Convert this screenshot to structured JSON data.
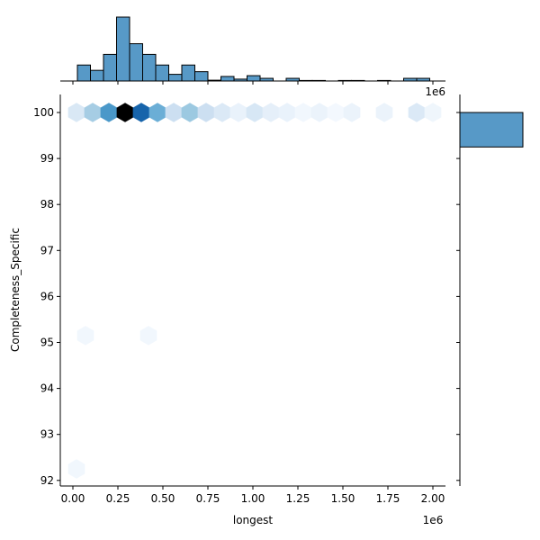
{
  "chart_data": {
    "type": "hexbin-jointplot",
    "title": "",
    "xlabel": "longest",
    "ylabel": "Completeness_Specific",
    "x_offset_label": "1e6",
    "top_offset_label": "1e6",
    "xlim": [
      -0.07,
      2.07
    ],
    "ylim": [
      91.9,
      100.4
    ],
    "x_ticks": [
      "0.00",
      "0.25",
      "0.50",
      "0.75",
      "1.00",
      "1.25",
      "1.50",
      "1.75",
      "2.00"
    ],
    "x_tick_values": [
      0.0,
      0.25,
      0.5,
      0.75,
      1.0,
      1.25,
      1.5,
      1.75,
      2.0
    ],
    "y_ticks": [
      "92",
      "93",
      "94",
      "95",
      "96",
      "97",
      "98",
      "99",
      "100"
    ],
    "y_tick_values": [
      92,
      93,
      94,
      95,
      96,
      97,
      98,
      99,
      100
    ],
    "colormap": "Blues",
    "hexbins": [
      {
        "x": 0.02,
        "y": 100,
        "intensity": 0.15
      },
      {
        "x": 0.11,
        "y": 100,
        "intensity": 0.35
      },
      {
        "x": 0.2,
        "y": 100,
        "intensity": 0.6
      },
      {
        "x": 0.29,
        "y": 100,
        "intensity": 1.0
      },
      {
        "x": 0.38,
        "y": 100,
        "intensity": 0.8
      },
      {
        "x": 0.47,
        "y": 100,
        "intensity": 0.5
      },
      {
        "x": 0.56,
        "y": 100,
        "intensity": 0.22
      },
      {
        "x": 0.65,
        "y": 100,
        "intensity": 0.38
      },
      {
        "x": 0.74,
        "y": 100,
        "intensity": 0.22
      },
      {
        "x": 0.83,
        "y": 100,
        "intensity": 0.14
      },
      {
        "x": 0.92,
        "y": 100,
        "intensity": 0.07
      },
      {
        "x": 1.01,
        "y": 100,
        "intensity": 0.16
      },
      {
        "x": 1.1,
        "y": 100,
        "intensity": 0.09
      },
      {
        "x": 1.19,
        "y": 100,
        "intensity": 0.07
      },
      {
        "x": 1.28,
        "y": 100,
        "intensity": 0.03
      },
      {
        "x": 1.37,
        "y": 100,
        "intensity": 0.06
      },
      {
        "x": 1.46,
        "y": 100,
        "intensity": 0.02
      },
      {
        "x": 1.55,
        "y": 100,
        "intensity": 0.06
      },
      {
        "x": 1.73,
        "y": 100,
        "intensity": 0.06
      },
      {
        "x": 1.91,
        "y": 100,
        "intensity": 0.14
      },
      {
        "x": 2.0,
        "y": 100,
        "intensity": 0.04
      },
      {
        "x": 0.07,
        "y": 95.15,
        "intensity": 0.03
      },
      {
        "x": 0.42,
        "y": 95.15,
        "intensity": 0.03
      },
      {
        "x": 0.02,
        "y": 92.25,
        "intensity": 0.03
      }
    ],
    "top_histogram": {
      "type": "bar",
      "bin_width": 0.0725,
      "bin_starts": [
        0.025,
        0.0975,
        0.17,
        0.2425,
        0.315,
        0.3875,
        0.46,
        0.5325,
        0.605,
        0.6775,
        0.75,
        0.8225,
        0.895,
        0.9675,
        1.04,
        1.1125,
        1.185,
        1.2575,
        1.33,
        1.4025,
        1.475,
        1.5475,
        1.62,
        1.6925,
        1.765,
        1.8375,
        1.91
      ],
      "values": [
        6,
        4,
        10,
        24,
        14,
        10,
        6,
        2.5,
        6,
        3.5,
        0.3,
        1.7,
        0.7,
        2,
        1,
        0,
        1,
        0.2,
        0.2,
        0,
        0.2,
        0.2,
        0,
        0.2,
        0,
        1,
        1
      ],
      "ymax": 24
    },
    "right_histogram": {
      "type": "barh",
      "bins": [
        {
          "y_start": 99.25,
          "y_end": 100.0,
          "value": 1.0
        }
      ]
    }
  }
}
